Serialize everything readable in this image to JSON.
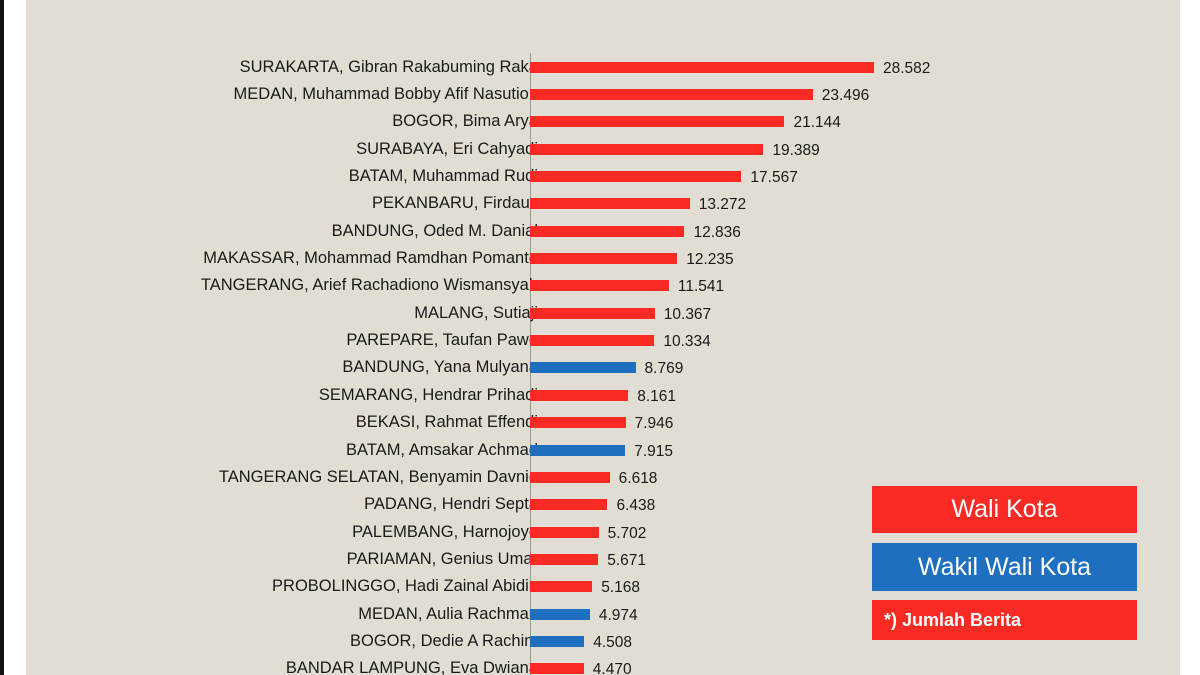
{
  "legend": {
    "wali_kota": "Wali Kota",
    "wakil_wali_kota": "Wakil Wali Kota",
    "note": "*) Jumlah Berita"
  },
  "colors": {
    "wali_kota": "#fb2a22",
    "wakil_wali_kota": "#1f6fc1",
    "background": "#e1ddd3"
  },
  "chart_data": {
    "type": "bar",
    "orientation": "horizontal",
    "title": "",
    "xlabel": "",
    "ylabel": "",
    "note": "*) Jumlah Berita",
    "legend": [
      "Wali Kota",
      "Wakil Wali Kota"
    ],
    "legend_position": "bottom-right",
    "grid": false,
    "categories": [
      "SURAKARTA, Gibran Rakabuming Raka",
      "MEDAN, Muhammad Bobby Afif Nasution",
      "BOGOR, Bima Arya",
      "SURABAYA, Eri Cahyadi",
      "BATAM, Muhammad Rudi",
      "PEKANBARU, Firdaus",
      "BANDUNG, Oded M. Danial",
      "MAKASSAR, Mohammad Ramdhan Pomanto",
      "TANGERANG, Arief Rachadiono Wismansyah",
      "MALANG, Sutiaji",
      "PAREPARE, Taufan Pawe",
      "BANDUNG, Yana Mulyana",
      "SEMARANG, Hendrar Prihadi",
      "BEKASI, Rahmat Effendi",
      "BATAM, Amsakar Achmad",
      "TANGERANG SELATAN, Benyamin Davnie",
      "PADANG, Hendri Septa",
      "PALEMBANG, Harnojoyo",
      "PARIAMAN, Genius Umar",
      "PROBOLINGGO, Hadi Zainal Abidin",
      "MEDAN, Aulia Rachman",
      "BOGOR, Dedie A Rachim",
      "BANDAR LAMPUNG, Eva Dwiana"
    ],
    "values": [
      28582,
      23496,
      21144,
      19389,
      17567,
      13272,
      12836,
      12235,
      11541,
      10367,
      10334,
      8769,
      8161,
      7946,
      7915,
      6618,
      6438,
      5702,
      5671,
      5168,
      4974,
      4508,
      4470
    ],
    "value_labels": [
      "28.582",
      "23.496",
      "21.144",
      "19.389",
      "17.567",
      "13.272",
      "12.836",
      "12.235",
      "11.541",
      "10.367",
      "10.334",
      "8.769",
      "8.161",
      "7.946",
      "7.915",
      "6.618",
      "6.438",
      "5.702",
      "5.671",
      "5.168",
      "4.974",
      "4.508",
      "4.470"
    ],
    "roles": [
      "Wali Kota",
      "Wali Kota",
      "Wali Kota",
      "Wali Kota",
      "Wali Kota",
      "Wali Kota",
      "Wali Kota",
      "Wali Kota",
      "Wali Kota",
      "Wali Kota",
      "Wali Kota",
      "Wakil Wali Kota",
      "Wali Kota",
      "Wali Kota",
      "Wakil Wali Kota",
      "Wali Kota",
      "Wali Kota",
      "Wali Kota",
      "Wali Kota",
      "Wali Kota",
      "Wakil Wali Kota",
      "Wakil Wali Kota",
      "Wali Kota"
    ],
    "xlim": [
      0,
      28582
    ]
  }
}
